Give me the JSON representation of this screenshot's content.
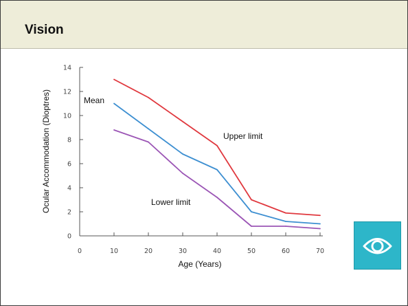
{
  "header": {
    "title": "Vision"
  },
  "chart_data": {
    "type": "line",
    "title": "",
    "xlabel": "Age (Years)",
    "ylabel": "Ocular Accommodation (Dioptres)",
    "xlim": [
      0,
      70
    ],
    "ylim": [
      0,
      14
    ],
    "x_ticks": [
      "0",
      "10",
      "20",
      "30",
      "40",
      "50",
      "60",
      "70"
    ],
    "y_ticks": [
      "0",
      "2",
      "4",
      "6",
      "8",
      "10",
      "12",
      "14"
    ],
    "grid": false,
    "x": [
      10,
      20,
      30,
      40,
      50,
      60,
      70
    ],
    "series": [
      {
        "name": "Upper limit",
        "color": "#e0383e",
        "values": [
          13.0,
          11.5,
          9.5,
          7.5,
          3.0,
          1.9,
          1.7
        ]
      },
      {
        "name": "Mean",
        "color": "#3d8fd1",
        "values": [
          11.0,
          8.9,
          6.8,
          5.5,
          2.0,
          1.2,
          1.0
        ]
      },
      {
        "name": "Lower limit",
        "color": "#9b55b5",
        "values": [
          8.8,
          7.8,
          5.2,
          3.2,
          0.8,
          0.8,
          0.6
        ]
      }
    ]
  },
  "eye_button": {
    "icon": "eye-icon",
    "color": "#2db6c9"
  }
}
